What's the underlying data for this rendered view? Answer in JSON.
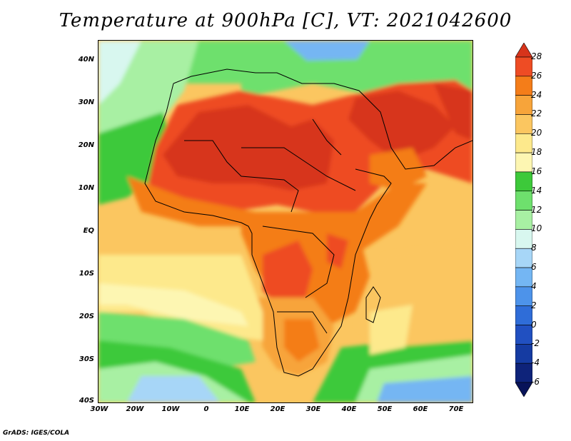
{
  "title": "Temperature at 900hPa [C], VT: 2021042600",
  "credit": "GrADS: IGES/COLA",
  "y_ticks": [
    "40N",
    "30N",
    "20N",
    "10N",
    "EQ",
    "10S",
    "20S",
    "30S",
    "40S"
  ],
  "x_ticks": [
    "30W",
    "20W",
    "10W",
    "0",
    "10E",
    "20E",
    "30E",
    "40E",
    "50E",
    "60E",
    "70E"
  ],
  "colorbar": {
    "labels": [
      "28",
      "26",
      "24",
      "22",
      "20",
      "18",
      "16",
      "14",
      "12",
      "10",
      "8",
      "6",
      "4",
      "2",
      "0",
      "-2",
      "-4",
      "-6"
    ],
    "colors": [
      "#d7341b",
      "#ee4c24",
      "#f47d19",
      "#f7a43a",
      "#fbc660",
      "#fde98c",
      "#fdf6b2",
      "#3dc93a",
      "#6ee06d",
      "#a8f0a3",
      "#d8f7ef",
      "#a7d6f7",
      "#74b6f3",
      "#4d93ea",
      "#2f6dd8",
      "#2150c1",
      "#153ba2",
      "#0e237a",
      "#081359"
    ]
  }
}
